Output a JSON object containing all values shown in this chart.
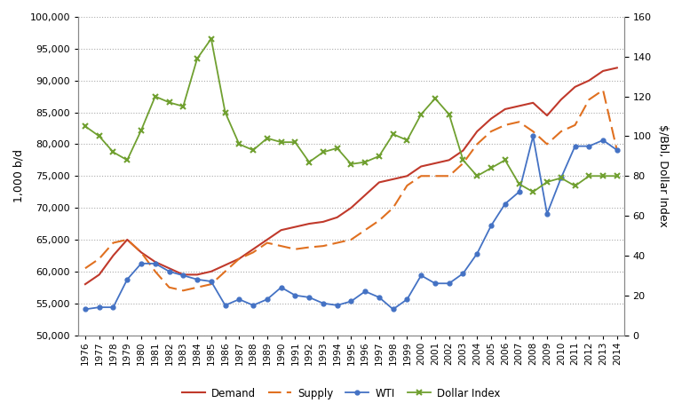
{
  "years": [
    1976,
    1977,
    1978,
    1979,
    1980,
    1981,
    1982,
    1983,
    1984,
    1985,
    1986,
    1987,
    1988,
    1989,
    1990,
    1991,
    1992,
    1993,
    1994,
    1995,
    1996,
    1997,
    1998,
    1999,
    2000,
    2001,
    2002,
    2003,
    2004,
    2005,
    2006,
    2007,
    2008,
    2009,
    2010,
    2011,
    2012,
    2013,
    2014
  ],
  "demand": [
    58000,
    59500,
    62500,
    65000,
    63000,
    61500,
    60500,
    59500,
    59500,
    60000,
    61000,
    62000,
    63500,
    65000,
    66500,
    67000,
    67500,
    67800,
    68500,
    70000,
    72000,
    74000,
    74500,
    75000,
    76500,
    77000,
    77500,
    79000,
    82000,
    84000,
    85500,
    86000,
    86500,
    84500,
    87000,
    89000,
    90000,
    91500,
    92000
  ],
  "supply": [
    60500,
    62000,
    64500,
    65000,
    63000,
    60000,
    57500,
    57000,
    57500,
    58000,
    60000,
    62000,
    63000,
    64500,
    64000,
    63500,
    63800,
    64000,
    64500,
    65000,
    66500,
    68000,
    70000,
    73500,
    75000,
    75000,
    75000,
    77000,
    80000,
    82000,
    83000,
    83500,
    82000,
    80000,
    82000,
    83000,
    87000,
    88500,
    79000
  ],
  "wti": [
    13,
    14,
    14,
    28,
    36,
    36,
    32,
    30,
    28,
    27,
    15,
    18,
    15,
    18,
    24,
    20,
    19,
    16,
    15,
    17,
    22,
    19,
    13,
    18,
    30,
    26,
    26,
    31,
    41,
    55,
    66,
    72,
    100,
    61,
    79,
    95,
    95,
    98,
    93
  ],
  "dollar_index": [
    105,
    100,
    92,
    88,
    103,
    120,
    117,
    115,
    139,
    149,
    112,
    96,
    93,
    99,
    97,
    97,
    87,
    92,
    94,
    86,
    87,
    90,
    101,
    98,
    111,
    119,
    111,
    88,
    80,
    84,
    88,
    76,
    72,
    77,
    79,
    75,
    80,
    80,
    80
  ],
  "demand_color": "#c0392b",
  "supply_color": "#e07020",
  "wti_color": "#4472c4",
  "dollar_color": "#70a030",
  "ylim_left": [
    50000,
    100000
  ],
  "ylim_right": [
    0,
    160
  ],
  "yticks_left": [
    50000,
    55000,
    60000,
    65000,
    70000,
    75000,
    80000,
    85000,
    90000,
    95000,
    100000
  ],
  "yticks_right": [
    0,
    20,
    40,
    60,
    80,
    100,
    120,
    140,
    160
  ],
  "ylabel_left": "1,000 b/d",
  "ylabel_right": "$/Bbl, Dollar Index",
  "legend_labels": [
    "Demand",
    "Supply",
    "WTI",
    "Dollar Index"
  ],
  "bg_color": "#ffffff",
  "grid_color": "#aaaaaa",
  "spine_color": "#888888"
}
